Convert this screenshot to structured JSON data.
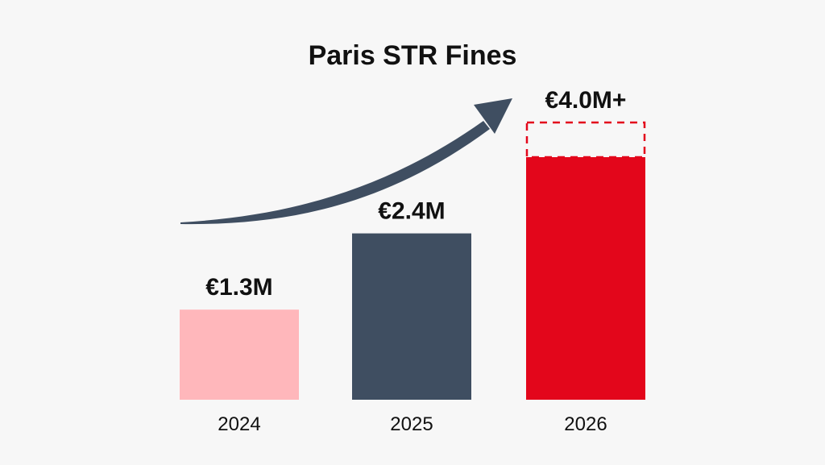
{
  "chart_data": {
    "type": "bar",
    "title": "Paris STR Fines",
    "xlabel": "",
    "ylabel": "",
    "categories": [
      "2024",
      "2025",
      "2026"
    ],
    "values": [
      1.3,
      2.4,
      4.0
    ],
    "data_labels": [
      "€1.3M",
      "€2.4M",
      "€4.0M+"
    ],
    "projected_value": 4.0,
    "actual_value_2026": 3.5,
    "unit": "€M",
    "grid": false,
    "legend": "none",
    "trend_arrow": true,
    "colors": {
      "bars": [
        "#ffb7bb",
        "#3f4e61",
        "#e3061b"
      ],
      "projection_outline": "#e3061b",
      "arrow": "#3f4e61",
      "text": "#111111",
      "background": "#f7f7f7"
    }
  }
}
